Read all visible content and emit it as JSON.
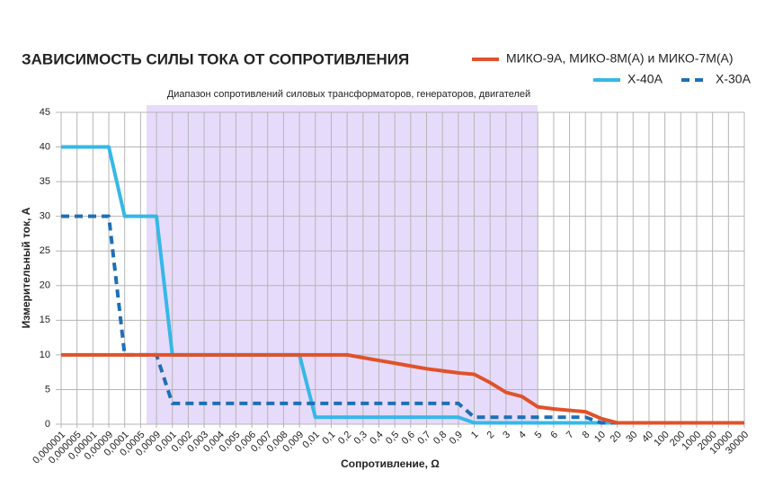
{
  "chart_data": {
    "type": "line",
    "title": "ЗАВИСИМОСТЬ СИЛЫ ТОКА ОТ СОПРОТИВЛЕНИЯ",
    "annotation": "Диапазон сопротивлений силовых трансформаторов, генераторов, двигателей",
    "x_label": "Сопротивление, Ω",
    "y_label": "Измерительный ток, А",
    "categories": [
      "0,000001",
      "0,000005",
      "0,00001",
      "0,00009",
      "0,0001",
      "0,0005",
      "0,0009",
      "0,001",
      "0,002",
      "0,003",
      "0,004",
      "0,005",
      "0,006",
      "0,007",
      "0,008",
      "0,009",
      "0,01",
      "0,1",
      "0,2",
      "0,3",
      "0,4",
      "0,5",
      "0,6",
      "0,7",
      "0,8",
      "0,9",
      "1",
      "2",
      "3",
      "4",
      "5",
      "6",
      "7",
      "8",
      "10",
      "20",
      "30",
      "40",
      "100",
      "200",
      "1000",
      "2000",
      "10000",
      "30000"
    ],
    "series": [
      {
        "name": "МИКО-9А, МИКО-8М(А) и МИКО-7М(А)",
        "color": "#e0522a",
        "style": "solid",
        "values": [
          10,
          10,
          10,
          10,
          10,
          10,
          10,
          10,
          10,
          10,
          10,
          10,
          10,
          10,
          10,
          10,
          10,
          10,
          10,
          9.6,
          9.2,
          8.8,
          8.4,
          8,
          7.7,
          7.4,
          7.2,
          6,
          4.6,
          4,
          2.5,
          2.2,
          2,
          1.8,
          0.8,
          0.2,
          0.2,
          0.2,
          0.2,
          0.2,
          0.2,
          0.2,
          0.2,
          0.2
        ]
      },
      {
        "name": "X-40A",
        "color": "#35b8e8",
        "style": "solid",
        "values": [
          40,
          40,
          40,
          40,
          30,
          30,
          30,
          10,
          10,
          10,
          10,
          10,
          10,
          10,
          10,
          10,
          1,
          1,
          1,
          1,
          1,
          1,
          1,
          1,
          1,
          1,
          0.2,
          0.2,
          0.2,
          0.2,
          0.2,
          0.2,
          0.2,
          0.2,
          0.2,
          0.2,
          0.2,
          0.2,
          0.2,
          0.2,
          0.2,
          0.2,
          0.2,
          0.2
        ]
      },
      {
        "name": "X-30A",
        "color": "#1f6fb5",
        "style": "dashed",
        "values": [
          30,
          30,
          30,
          30,
          10,
          10,
          10,
          3,
          3,
          3,
          3,
          3,
          3,
          3,
          3,
          3,
          3,
          3,
          3,
          3,
          3,
          3,
          3,
          3,
          3,
          3,
          1,
          1,
          1,
          1,
          1,
          1,
          1,
          1,
          0.2,
          0.2,
          0.2,
          0.2,
          0.2,
          0.2,
          0.2,
          0.2,
          0.2,
          0.2
        ]
      }
    ],
    "ylim": [
      0,
      45
    ],
    "yticks": [
      0,
      5,
      10,
      15,
      20,
      25,
      30,
      35,
      40,
      45
    ],
    "grid": true
  }
}
